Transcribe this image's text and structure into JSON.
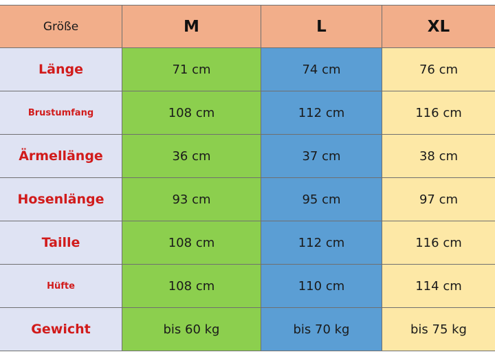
{
  "table": {
    "corner_label": "Größe",
    "sizes": [
      "M",
      "L",
      "XL"
    ],
    "rows": [
      {
        "label": "Länge",
        "values": [
          "71 cm",
          "74 cm",
          "76 cm"
        ]
      },
      {
        "label": "Brustumfang",
        "values": [
          "108 cm",
          "112 cm",
          "116 cm"
        ]
      },
      {
        "label": "Ärmellänge",
        "values": [
          "36 cm",
          "37 cm",
          "38 cm"
        ]
      },
      {
        "label": "Hosenlänge",
        "values": [
          "93 cm",
          "95 cm",
          "97 cm"
        ]
      },
      {
        "label": "Taille",
        "values": [
          "108 cm",
          "112 cm",
          "116 cm"
        ]
      },
      {
        "label": "Hüfte",
        "values": [
          "108 cm",
          "110 cm",
          "114 cm"
        ]
      },
      {
        "label": "Gewicht",
        "values": [
          "bis 60 kg",
          "bis 70 kg",
          "bis 75 kg"
        ]
      }
    ]
  },
  "colors": {
    "header": "#f2ae8a",
    "label_column": "#dfe3f3",
    "label_text": "#d11b1b",
    "size_m": "#8ccf4e",
    "size_l": "#5b9ed4",
    "size_xl": "#fde8a6"
  }
}
